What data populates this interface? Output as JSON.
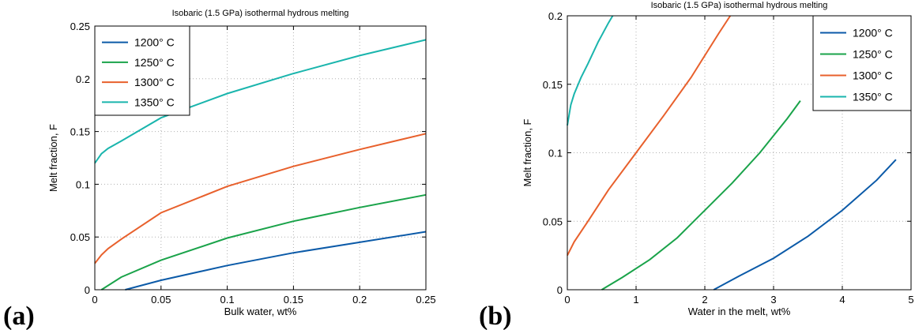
{
  "figure": {
    "panel_labels": [
      "(a)",
      "(b)"
    ]
  },
  "chart_data": [
    {
      "type": "line",
      "title": "Isobaric (1.5 GPa) isothermal hydrous melting",
      "xlabel": "Bulk water, wt%",
      "ylabel": "Melt fraction, F",
      "xlim": [
        0,
        0.25
      ],
      "ylim": [
        0,
        0.25
      ],
      "xticks": [
        0,
        0.05,
        0.1,
        0.15,
        0.2,
        0.25
      ],
      "xtick_labels": [
        "0",
        "0.05",
        "0.1",
        "0.15",
        "0.2",
        "0.25"
      ],
      "yticks": [
        0,
        0.05,
        0.1,
        0.15,
        0.2,
        0.25
      ],
      "ytick_labels": [
        "0",
        "0.05",
        "0.1",
        "0.15",
        "0.2",
        "0.25"
      ],
      "grid": true,
      "legend_position": "top-left",
      "series": [
        {
          "name": "1200° C",
          "color": "#0b5aa8",
          "x": [
            0.023,
            0.05,
            0.1,
            0.15,
            0.2,
            0.25
          ],
          "y": [
            0.0,
            0.009,
            0.023,
            0.035,
            0.045,
            0.055
          ]
        },
        {
          "name": "1250° C",
          "color": "#1aa34a",
          "x": [
            0.005,
            0.02,
            0.05,
            0.1,
            0.15,
            0.2,
            0.25
          ],
          "y": [
            0.0,
            0.012,
            0.028,
            0.049,
            0.065,
            0.078,
            0.09
          ]
        },
        {
          "name": "1300° C",
          "color": "#e8602c",
          "x": [
            0.0,
            0.005,
            0.01,
            0.02,
            0.05,
            0.1,
            0.15,
            0.2,
            0.25
          ],
          "y": [
            0.025,
            0.033,
            0.039,
            0.048,
            0.073,
            0.098,
            0.117,
            0.133,
            0.148
          ]
        },
        {
          "name": "1350° C",
          "color": "#1ab5ad",
          "x": [
            0.0,
            0.005,
            0.01,
            0.02,
            0.05,
            0.1,
            0.15,
            0.2,
            0.25
          ],
          "y": [
            0.12,
            0.129,
            0.134,
            0.141,
            0.163,
            0.186,
            0.205,
            0.222,
            0.237
          ]
        }
      ]
    },
    {
      "type": "line",
      "title": "Isobaric (1.5 GPa) isothermal hydrous melting",
      "xlabel": "Water in the melt, wt%",
      "ylabel": "Melt fraction, F",
      "xlim": [
        0,
        5
      ],
      "ylim": [
        0,
        0.2
      ],
      "xticks": [
        0,
        1,
        2,
        3,
        4,
        5
      ],
      "xtick_labels": [
        "0",
        "1",
        "2",
        "3",
        "4",
        "5"
      ],
      "yticks": [
        0,
        0.05,
        0.1,
        0.15,
        0.2
      ],
      "ytick_labels": [
        "0",
        "0.05",
        "0.1",
        "0.15",
        "0.2"
      ],
      "grid": true,
      "legend_position": "top-right",
      "series": [
        {
          "name": "1200° C",
          "color": "#0b5aa8",
          "x": [
            2.13,
            2.5,
            3.0,
            3.5,
            4.0,
            4.5,
            4.78
          ],
          "y": [
            0.0,
            0.01,
            0.023,
            0.039,
            0.058,
            0.08,
            0.095
          ]
        },
        {
          "name": "1250° C",
          "color": "#1aa34a",
          "x": [
            0.5,
            0.8,
            1.2,
            1.6,
            2.0,
            2.4,
            2.8,
            3.2,
            3.39
          ],
          "y": [
            0.0,
            0.009,
            0.022,
            0.038,
            0.058,
            0.078,
            0.1,
            0.125,
            0.138
          ]
        },
        {
          "name": "1300° C",
          "color": "#e8602c",
          "x": [
            0.0,
            0.1,
            0.3,
            0.6,
            1.0,
            1.4,
            1.8,
            2.2,
            2.37
          ],
          "y": [
            0.025,
            0.035,
            0.05,
            0.073,
            0.1,
            0.127,
            0.155,
            0.187,
            0.2
          ]
        },
        {
          "name": "1350° C",
          "color": "#1ab5ad",
          "x": [
            0.0,
            0.05,
            0.1,
            0.2,
            0.3,
            0.45,
            0.6,
            0.66
          ],
          "y": [
            0.12,
            0.135,
            0.143,
            0.155,
            0.165,
            0.181,
            0.195,
            0.2
          ]
        }
      ]
    }
  ]
}
